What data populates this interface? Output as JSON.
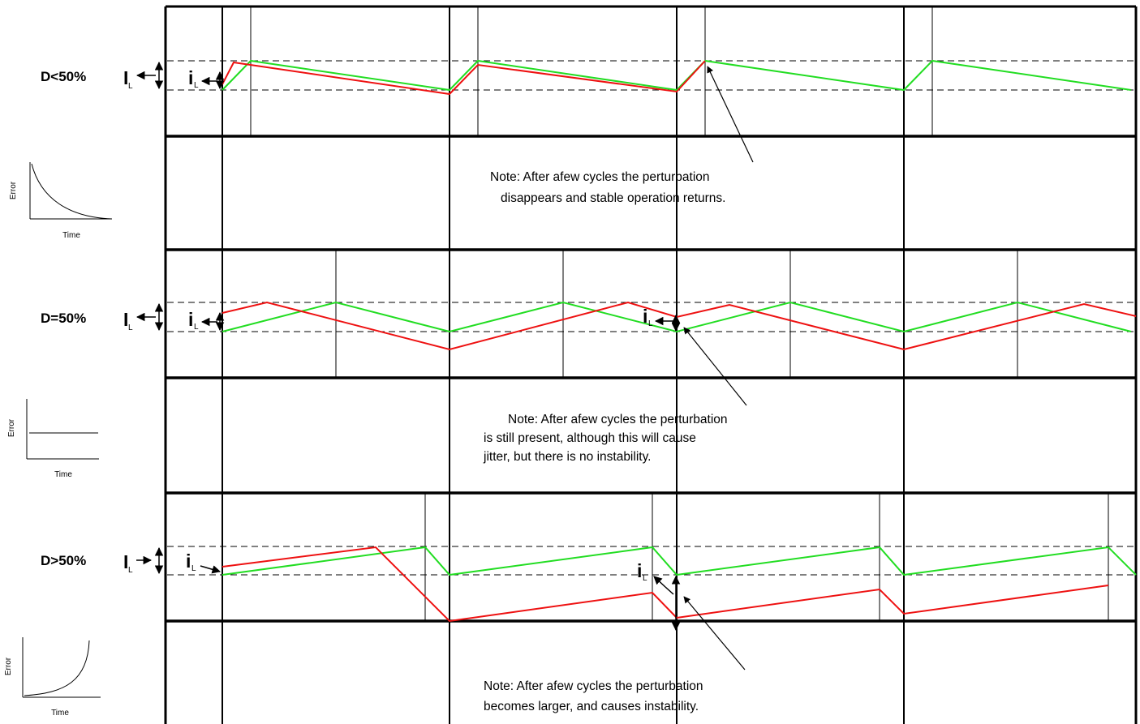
{
  "panels": [
    {
      "id": "d-lt-50",
      "label": "D<50%",
      "inductor_label": "I",
      "inductor_sub": "L",
      "ripple_label": "i",
      "ripple_sub": "L",
      "note_lines": [
        "Note: After afew cycles the perturbation",
        "disappears and stable operation  returns."
      ],
      "error_plot": {
        "ylabel": "Error",
        "xlabel": "Time",
        "trend": "decaying"
      }
    },
    {
      "id": "d-eq-50",
      "label": "D=50%",
      "inductor_label": "I",
      "inductor_sub": "L",
      "ripple_label": "i",
      "ripple_sub": "L",
      "marker_label": "i",
      "marker_sub": "L",
      "note_lines": [
        "Note: After afew cycles the perturbation",
        "is still present, although this will cause",
        "jitter, but there is no instability."
      ],
      "error_plot": {
        "ylabel": "Error",
        "xlabel": "Time",
        "trend": "constant"
      }
    },
    {
      "id": "d-gt-50",
      "label": "D>50%",
      "inductor_label": "I",
      "inductor_sub": "L",
      "ripple_label": "i",
      "ripple_sub": "L",
      "marker_label": "i",
      "marker_sub": "L",
      "note_lines": [
        "Note: After afew cycles the perturbation",
        "becomes larger, and causes  instability."
      ],
      "error_plot": {
        "ylabel": "Error",
        "xlabel": "Time",
        "trend": "growing"
      }
    }
  ],
  "colors": {
    "steady_state": "#22dd22",
    "perturbed": "#ee1111",
    "grid": "#000000"
  }
}
